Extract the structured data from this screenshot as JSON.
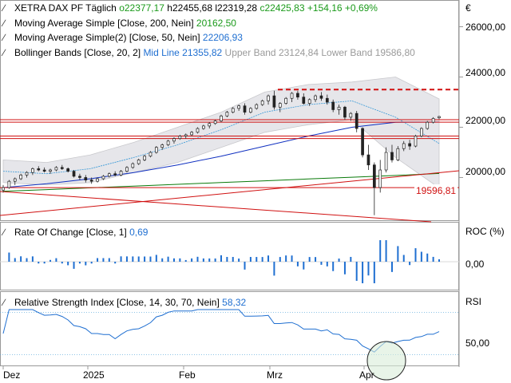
{
  "header": {
    "instrument": "XETRA DAX PF",
    "interval": "Täglich",
    "open_label": "o",
    "open": "22377,17",
    "high_label": "h",
    "high": "22455,68",
    "low_label": "l",
    "low": "22319,28",
    "close_label": "c",
    "close": "22425,83",
    "change": "+154,16",
    "change_pct": "+0,69%"
  },
  "legend": {
    "ma200": {
      "label": "Moving Average Simple [Close, 200, Nein]",
      "value": "20162,50"
    },
    "ma50": {
      "label": "Moving Average Simple(2) [Close, 50, Nein]",
      "value": "22206,93"
    },
    "bb": {
      "label": "Bollinger Bands [Close, 20, 2]",
      "mid_label": "Mid Line",
      "mid": "21355,82",
      "upper_label": "Upper Band",
      "upper": "23124,84",
      "lower_label": "Lower Band",
      "lower": "19586,80"
    }
  },
  "price_axis": {
    "currency": "€",
    "ticks": [
      "26000,00",
      "24000,00",
      "22000,00",
      "20000,00"
    ]
  },
  "price_tag": "19596,81",
  "roc": {
    "label": "Rate Of Change [Close, 1]",
    "value": "0,69",
    "axis_label": "ROC (%)",
    "tick": "0,00"
  },
  "rsi": {
    "label": "Relative Strength Index [Close, 14, 30, 70, Nein]",
    "value": "58,32",
    "axis_label": "RSI",
    "tick": "50,00"
  },
  "x_axis": {
    "labels": [
      "Dez",
      "2025",
      "Feb",
      "Mrz",
      "Apr"
    ]
  },
  "colors": {
    "up": "#1a9a1a",
    "down": "#1f6fd1",
    "band_fill": "#e6e6ea",
    "red": "#d01010",
    "ma200": "#0a7a0a",
    "ma50": "#1030c0"
  },
  "chart_data": {
    "type": "candlestick",
    "instrument": "XETRA DAX PF",
    "ohlc_approx": [
      [
        19500,
        19700,
        19400,
        19600
      ],
      [
        19600,
        19900,
        19550,
        19850
      ],
      [
        19850,
        20000,
        19700,
        19950
      ],
      [
        19950,
        20150,
        19900,
        20100
      ],
      [
        20100,
        20250,
        20000,
        20200
      ],
      [
        20200,
        20400,
        20100,
        20350
      ],
      [
        20350,
        20450,
        20250,
        20300
      ],
      [
        20300,
        20400,
        20200,
        20250
      ],
      [
        20250,
        20350,
        20150,
        20300
      ],
      [
        20300,
        20450,
        20250,
        20400
      ],
      [
        20400,
        20500,
        20300,
        20350
      ],
      [
        20350,
        20400,
        20200,
        20250
      ],
      [
        20250,
        20300,
        20000,
        20050
      ],
      [
        20050,
        20150,
        19900,
        20000
      ],
      [
        20000,
        20100,
        19800,
        19900
      ],
      [
        19900,
        20000,
        19750,
        19850
      ],
      [
        19850,
        20000,
        19800,
        19950
      ],
      [
        19950,
        20100,
        19900,
        20050
      ],
      [
        20050,
        20200,
        20000,
        20150
      ],
      [
        20150,
        20250,
        20050,
        20100
      ],
      [
        20100,
        20300,
        20050,
        20250
      ],
      [
        20250,
        20450,
        20200,
        20400
      ],
      [
        20400,
        20600,
        20350,
        20550
      ],
      [
        20550,
        20750,
        20500,
        20700
      ],
      [
        20700,
        20900,
        20650,
        20850
      ],
      [
        20850,
        21050,
        20800,
        21000
      ],
      [
        21000,
        21250,
        20950,
        21200
      ],
      [
        21200,
        21350,
        21100,
        21300
      ],
      [
        21300,
        21500,
        21250,
        21450
      ],
      [
        21450,
        21600,
        21350,
        21550
      ],
      [
        21550,
        21700,
        21500,
        21650
      ],
      [
        21650,
        21750,
        21550,
        21700
      ],
      [
        21700,
        21850,
        21650,
        21800
      ],
      [
        21800,
        22000,
        21750,
        21950
      ],
      [
        21950,
        22100,
        21900,
        22050
      ],
      [
        22050,
        22200,
        21950,
        22150
      ],
      [
        22150,
        22300,
        22100,
        22250
      ],
      [
        22250,
        22500,
        22200,
        22450
      ],
      [
        22450,
        22650,
        22400,
        22600
      ],
      [
        22600,
        22800,
        22550,
        22750
      ],
      [
        22750,
        22900,
        22650,
        22850
      ],
      [
        22850,
        22950,
        22500,
        22600
      ],
      [
        22600,
        22800,
        22550,
        22750
      ],
      [
        22750,
        22950,
        22700,
        22900
      ],
      [
        22900,
        23100,
        22850,
        23050
      ],
      [
        23050,
        23300,
        22900,
        23250
      ],
      [
        23250,
        23450,
        22700,
        22800
      ],
      [
        22800,
        23000,
        22600,
        22950
      ],
      [
        22950,
        23200,
        22900,
        23150
      ],
      [
        23150,
        23400,
        23000,
        23350
      ],
      [
        23350,
        23450,
        23100,
        23200
      ],
      [
        23200,
        23350,
        22900,
        22950
      ],
      [
        22950,
        23150,
        22850,
        23100
      ],
      [
        23100,
        23300,
        23000,
        23250
      ],
      [
        23250,
        23400,
        23050,
        23150
      ],
      [
        23150,
        23300,
        22900,
        23000
      ],
      [
        23000,
        23100,
        22600,
        22700
      ],
      [
        22700,
        22900,
        22500,
        22800
      ],
      [
        22800,
        22850,
        22300,
        22400
      ],
      [
        22400,
        22600,
        22250,
        22550
      ],
      [
        22550,
        22650,
        21800,
        21950
      ],
      [
        21950,
        22000,
        20800,
        20900
      ],
      [
        20900,
        21300,
        20300,
        20500
      ],
      [
        20500,
        20600,
        18500,
        19600
      ],
      [
        19600,
        20700,
        19400,
        20300
      ],
      [
        20300,
        21200,
        20200,
        21000
      ],
      [
        21000,
        21300,
        20600,
        20700
      ],
      [
        20700,
        21250,
        20650,
        21150
      ],
      [
        21150,
        21450,
        21050,
        21350
      ],
      [
        21350,
        21500,
        21100,
        21250
      ],
      [
        21250,
        21700,
        21200,
        21650
      ],
      [
        21650,
        22000,
        21600,
        21950
      ],
      [
        21950,
        22250,
        21900,
        22200
      ],
      [
        22200,
        22400,
        22150,
        22350
      ],
      [
        22377,
        22456,
        22319,
        22426
      ]
    ],
    "ma200": [
      19450,
      19520,
      19590,
      19660,
      19730,
      19800,
      19870,
      19940,
      20010,
      20080,
      20162
    ],
    "ma50": [
      19600,
      19750,
      19950,
      20200,
      20500,
      20850,
      21250,
      21650,
      22000,
      22200,
      22207
    ],
    "bollinger_mid": [
      20250,
      20150,
      20350,
      20800,
      21300,
      21900,
      22600,
      22900,
      23050,
      22400,
      21356
    ],
    "bollinger_upper": [
      20700,
      20600,
      20900,
      21400,
      22000,
      22600,
      23400,
      23700,
      23800,
      24000,
      23125
    ],
    "bollinger_lower": [
      19800,
      19700,
      19800,
      20200,
      20600,
      21200,
      21800,
      22100,
      22300,
      20800,
      19587
    ],
    "ylim": [
      18300,
      27000
    ],
    "roc_ylim": [
      -3,
      3
    ],
    "rsi_ylim": [
      20,
      80
    ],
    "rsi_levels": [
      30,
      70
    ]
  }
}
